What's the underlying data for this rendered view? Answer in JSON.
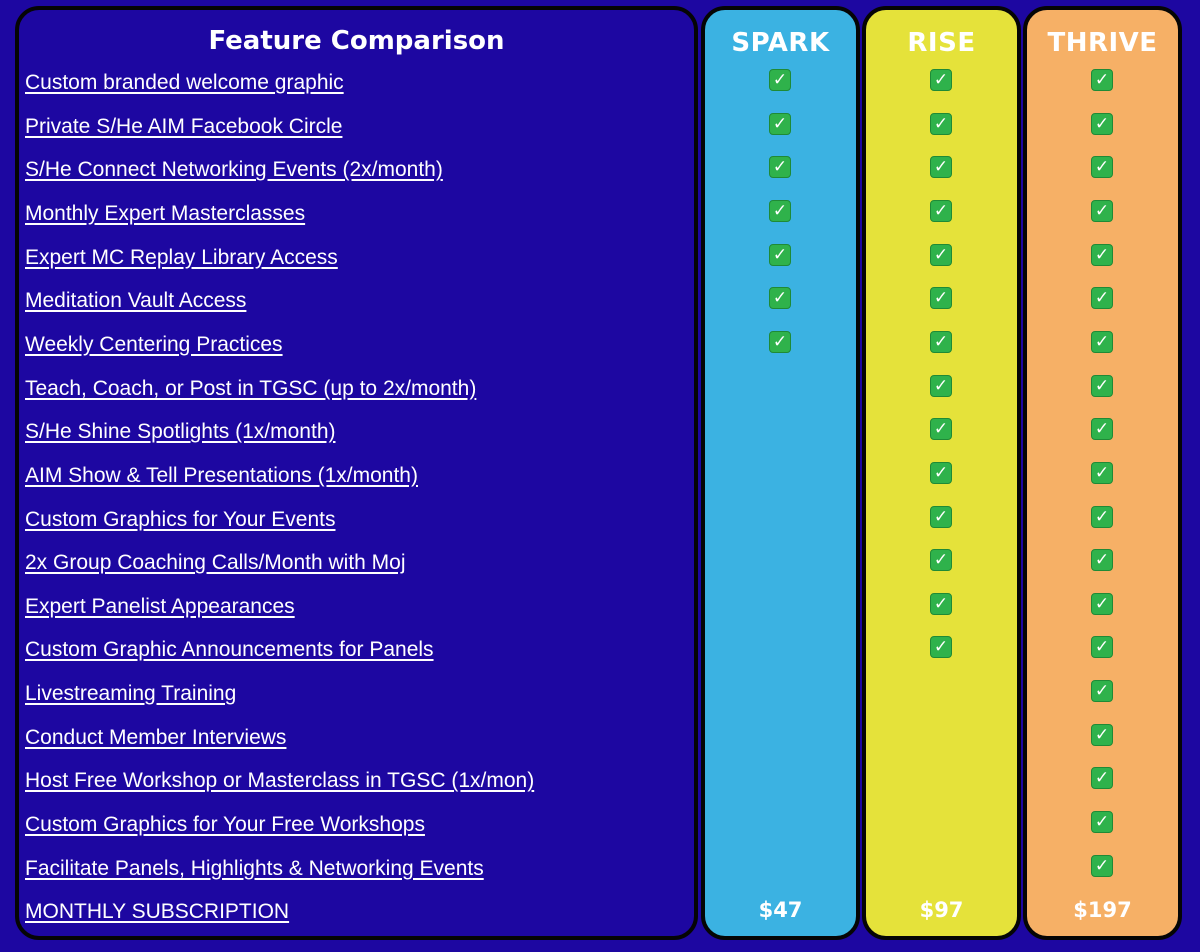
{
  "header": {
    "title": "Feature Comparison"
  },
  "plans": [
    {
      "name": "SPARK",
      "price": "$47",
      "color": "#3bb2e2"
    },
    {
      "name": "RISE",
      "price": "$97",
      "color": "#e5e23a"
    },
    {
      "name": "THRIVE",
      "price": "$197",
      "color": "#f6b066"
    }
  ],
  "check_icon": "checkmark-button-icon",
  "features": [
    {
      "label": "Custom branded welcome graphic",
      "spark": true,
      "rise": true,
      "thrive": true
    },
    {
      "label": "Private S/He AIM Facebook Circle",
      "spark": true,
      "rise": true,
      "thrive": true
    },
    {
      "label": "S/He Connect Networking Events (2x/month)",
      "spark": true,
      "rise": true,
      "thrive": true
    },
    {
      "label": "Monthly Expert Masterclasses",
      "spark": true,
      "rise": true,
      "thrive": true
    },
    {
      "label": "Expert MC Replay Library Access",
      "spark": true,
      "rise": true,
      "thrive": true
    },
    {
      "label": "Meditation Vault Access",
      "spark": true,
      "rise": true,
      "thrive": true
    },
    {
      "label": "Weekly Centering Practices",
      "spark": true,
      "rise": true,
      "thrive": true
    },
    {
      "label": "Teach, Coach, or Post in TGSC (up to 2x/month)",
      "spark": false,
      "rise": true,
      "thrive": true
    },
    {
      "label": "S/He Shine Spotlights (1x/month)",
      "spark": false,
      "rise": true,
      "thrive": true
    },
    {
      "label": "AIM Show & Tell Presentations (1x/month)",
      "spark": false,
      "rise": true,
      "thrive": true
    },
    {
      "label": "Custom Graphics for Your Events",
      "spark": false,
      "rise": true,
      "thrive": true
    },
    {
      "label": "2x Group Coaching Calls/Month with Moj",
      "spark": false,
      "rise": true,
      "thrive": true
    },
    {
      "label": "Expert Panelist Appearances",
      "spark": false,
      "rise": true,
      "thrive": true
    },
    {
      "label": "Custom Graphic Announcements for Panels",
      "spark": false,
      "rise": true,
      "thrive": true
    },
    {
      "label": "Livestreaming Training",
      "spark": false,
      "rise": false,
      "thrive": true
    },
    {
      "label": "Conduct Member Interviews",
      "spark": false,
      "rise": false,
      "thrive": true
    },
    {
      "label": "Host Free Workshop or Masterclass in TGSC (1x/mon)",
      "spark": false,
      "rise": false,
      "thrive": true
    },
    {
      "label": "Custom Graphics for Your Free Workshops",
      "spark": false,
      "rise": false,
      "thrive": true
    },
    {
      "label": "Facilitate Panels, Highlights & Networking Events",
      "spark": false,
      "rise": false,
      "thrive": true
    }
  ],
  "footer": {
    "label": "MONTHLY SUBSCRIPTION"
  }
}
